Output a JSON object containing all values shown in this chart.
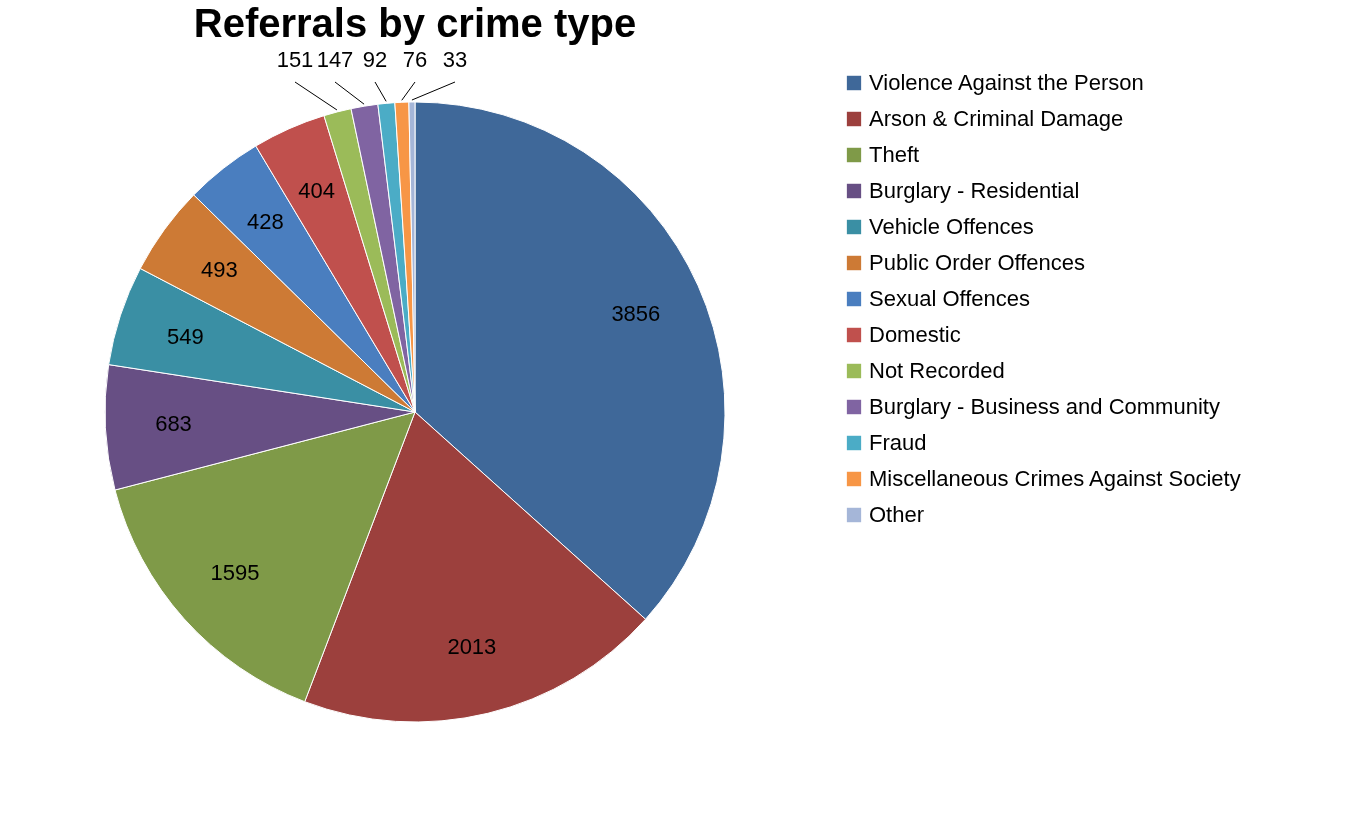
{
  "chart_data": {
    "type": "pie",
    "title": "Referrals by crime type",
    "categories": [
      "Violence Against the Person",
      "Arson & Criminal Damage",
      "Theft",
      "Burglary  - Residential",
      "Vehicle Offences",
      "Public Order Offences",
      "Sexual Offences",
      "Domestic",
      "Not Recorded",
      "Burglary  - Business and Community",
      "Fraud",
      "Miscellaneous Crimes Against Society",
      "Other"
    ],
    "values": [
      3856,
      2013,
      1595,
      683,
      549,
      493,
      428,
      404,
      151,
      147,
      92,
      76,
      33
    ],
    "colors": [
      "#3f6899",
      "#9c403d",
      "#7f9a48",
      "#674f84",
      "#3a8fa4",
      "#cd7a35",
      "#4a7ebf",
      "#c0504d",
      "#9bbb59",
      "#8064a2",
      "#4bacc6",
      "#f79646",
      "#a5b6d8"
    ],
    "data_labels": true,
    "legend": "right"
  }
}
